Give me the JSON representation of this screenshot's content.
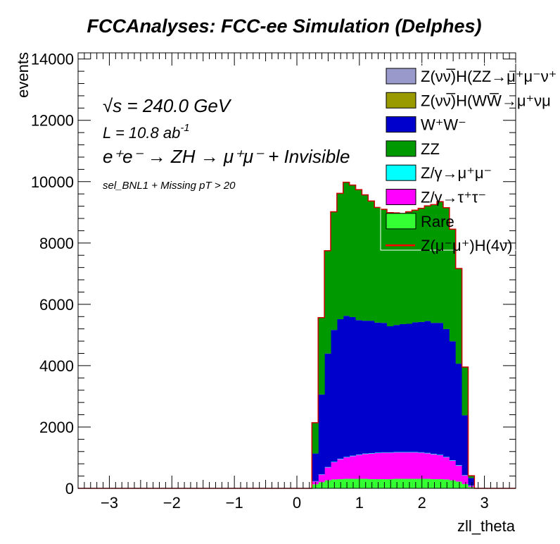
{
  "chart_data": {
    "type": "bar",
    "title": "FCCAnalyses: FCC-ee Simulation (Delphes)",
    "xlabel": "zll_theta",
    "ylabel": "events",
    "xlim": [
      -3.5,
      3.5
    ],
    "ylim": [
      0,
      14200
    ],
    "xticks": [
      "−3",
      "−2",
      "−1",
      "0",
      "1",
      "2",
      "3"
    ],
    "yticks": [
      "0",
      "2000",
      "4000",
      "6000",
      "8000",
      "10000",
      "12000",
      "14000"
    ],
    "annotations": {
      "sqrt_s_symbol": "√s",
      "sqrt_s_value": " = 240.0 GeV",
      "lumi_text": "L = 10.8 ab",
      "lumi_exp": "-1",
      "process": "e⁺e⁻ → ZH → μ⁺μ⁻ + Invisible",
      "selection": "sel_BNL1 + Missing pT > 20"
    },
    "legend_position": "top-right",
    "bin_edges": [
      0.24,
      0.34,
      0.44,
      0.54,
      0.64,
      0.74,
      0.84,
      0.94,
      1.04,
      1.14,
      1.24,
      1.34,
      1.44,
      1.54,
      1.64,
      1.74,
      1.84,
      1.94,
      2.04,
      2.14,
      2.24,
      2.34,
      2.44,
      2.54,
      2.64,
      2.74,
      2.84
    ],
    "series": [
      {
        "name": "Rare",
        "color": "#33ff33",
        "values": [
          130,
          200,
          260,
          290,
          300,
          310,
          310,
          310,
          310,
          300,
          300,
          300,
          300,
          310,
          310,
          310,
          310,
          310,
          310,
          300,
          300,
          290,
          260,
          220,
          140,
          40
        ]
      },
      {
        "name": "Z/γ→τ⁺τ⁻",
        "color": "#ff00ff",
        "values": [
          100,
          250,
          420,
          560,
          650,
          700,
          740,
          780,
          810,
          830,
          850,
          860,
          860,
          860,
          860,
          860,
          860,
          850,
          830,
          810,
          780,
          720,
          640,
          520,
          280,
          50
        ]
      },
      {
        "name": "Z/γ→μ⁺μ⁻",
        "color": "#00ffff",
        "values": [
          5,
          10,
          15,
          15,
          15,
          15,
          15,
          15,
          15,
          15,
          15,
          15,
          15,
          15,
          15,
          15,
          15,
          15,
          15,
          15,
          15,
          15,
          15,
          15,
          10,
          5
        ]
      },
      {
        "name": "W⁺W⁻",
        "color": "#0000cc",
        "values": [
          900,
          2600,
          3700,
          4300,
          4550,
          4600,
          4520,
          4380,
          4330,
          4320,
          4240,
          4220,
          4110,
          4140,
          4170,
          4180,
          4230,
          4250,
          4300,
          4270,
          4300,
          4170,
          3880,
          3310,
          1950,
          240
        ]
      },
      {
        "name": "ZZ",
        "color": "#009900",
        "values": [
          1000,
          2500,
          3350,
          3850,
          4100,
          4350,
          4300,
          4250,
          4100,
          3900,
          3750,
          3700,
          3700,
          3650,
          3600,
          3650,
          3650,
          3700,
          3750,
          3850,
          3950,
          3950,
          3650,
          3100,
          1570,
          70
        ]
      },
      {
        "name": "Z(νv̅)H(WW→μ⁺νμ⁻ν)",
        "color": "#999900",
        "values": [
          0,
          0,
          0,
          0,
          0,
          0,
          0,
          0,
          0,
          0,
          0,
          0,
          0,
          0,
          0,
          0,
          0,
          0,
          0,
          0,
          0,
          0,
          0,
          0,
          0,
          0
        ]
      },
      {
        "name": "Z(νv̅)H(ZZ→μ⁺μ⁻νν)",
        "color": "#9999cc",
        "values": [
          0,
          0,
          0,
          0,
          0,
          0,
          0,
          0,
          0,
          0,
          0,
          0,
          0,
          0,
          0,
          0,
          0,
          0,
          0,
          0,
          0,
          0,
          0,
          0,
          0,
          0
        ]
      },
      {
        "name": "Z(μ⁻μ⁺)H(4ν)",
        "color": "#ff0000",
        "values": [
          5,
          5,
          5,
          5,
          5,
          5,
          5,
          5,
          5,
          5,
          5,
          5,
          5,
          5,
          5,
          5,
          5,
          5,
          5,
          5,
          5,
          5,
          5,
          5,
          5,
          5
        ]
      }
    ],
    "legend": [
      {
        "label": "Z(νν̅)H(ZZ→μ⁺μ⁻ν⁺",
        "color": "#9999cc",
        "kind": "box"
      },
      {
        "label": "Z(νν̅)H(WW̅→μ⁺νμ",
        "color": "#999900",
        "kind": "box"
      },
      {
        "label": "W⁺W⁻",
        "color": "#0000cc",
        "kind": "box"
      },
      {
        "label": "ZZ",
        "color": "#009900",
        "kind": "box"
      },
      {
        "label": "Z/γ→μ⁺μ⁻",
        "color": "#00ffff",
        "kind": "box"
      },
      {
        "label": "Z/γ→τ⁺τ⁻",
        "color": "#ff00ff",
        "kind": "box"
      },
      {
        "label": "Rare",
        "color": "#33ff33",
        "kind": "box"
      },
      {
        "label": "Z(μ⁻μ⁺)H(4ν)",
        "color": "#ff0000",
        "kind": "line"
      }
    ]
  }
}
